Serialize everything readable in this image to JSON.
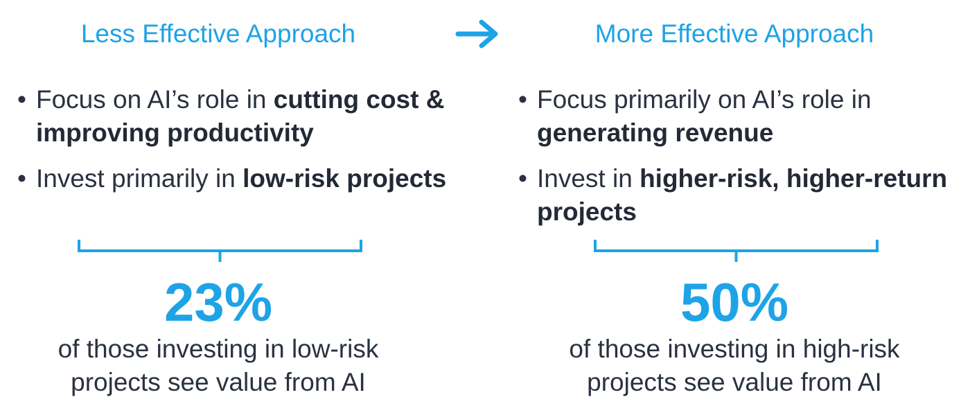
{
  "left": {
    "heading": "Less Effective Approach",
    "bullets": [
      {
        "text": "Focus on AI’s role in ",
        "bold": "cutting cost & improving productivity"
      },
      {
        "text": "Invest primarily in ",
        "bold": "low-risk projects"
      }
    ],
    "stat": "23%",
    "caption": "of those investing in low-risk projects see value from AI"
  },
  "right": {
    "heading": "More Effective Approach",
    "bullets": [
      {
        "text": "Focus primarily on AI’s role in ",
        "bold": "generating revenue"
      },
      {
        "text": "Invest in ",
        "bold": "higher-risk, higher-return projects"
      }
    ],
    "stat": "50%",
    "caption": "of those investing in high-risk projects see value from AI"
  },
  "colors": {
    "accent": "#1ea3e6",
    "text": "#2a3140"
  },
  "icons": {
    "transition": "right-arrow-icon"
  }
}
